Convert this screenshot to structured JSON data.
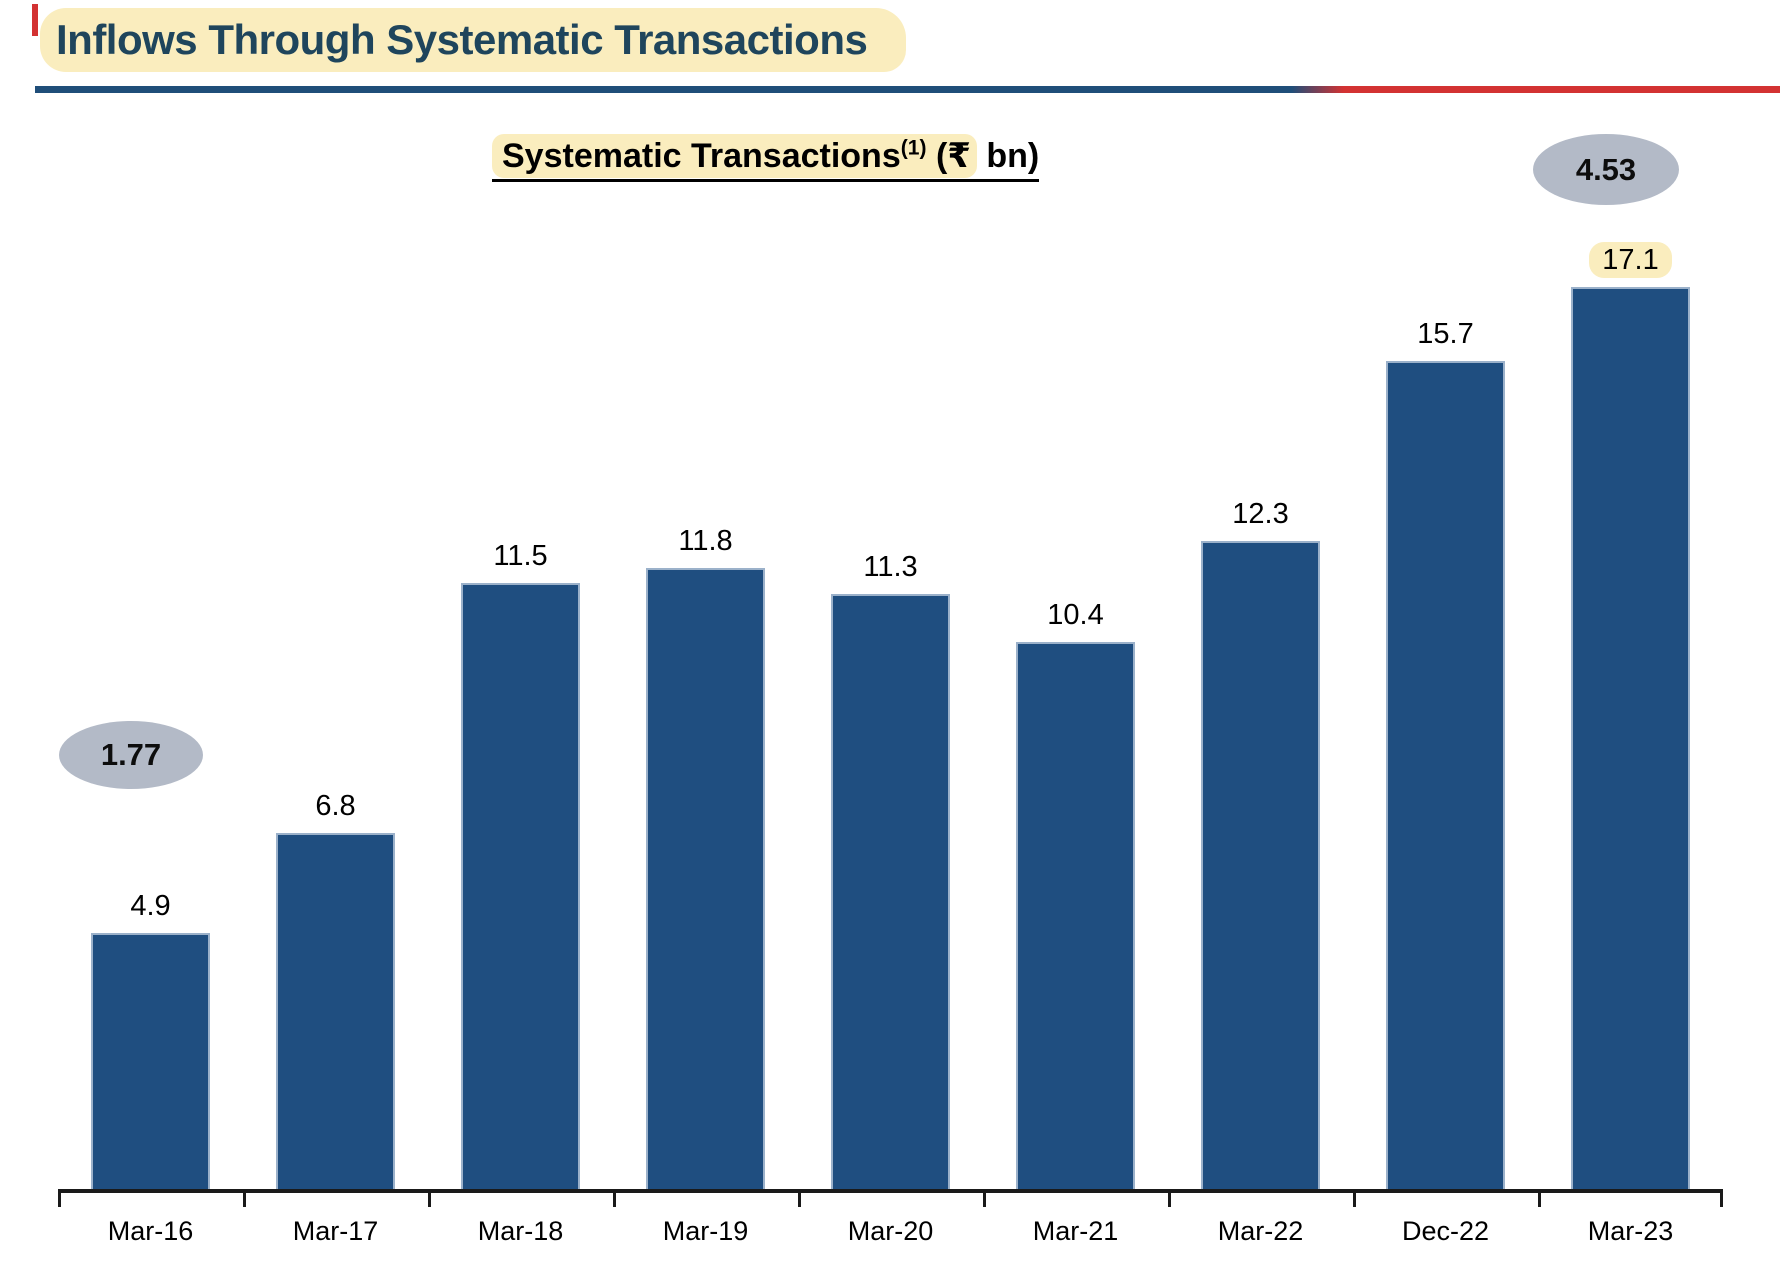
{
  "header": {
    "title": "Inflows Through Systematic Transactions"
  },
  "chart_title": {
    "main": "Systematic Transactions",
    "superscript": "(1)",
    "currency": "(₹",
    "unit": " bn)"
  },
  "callouts": {
    "initial": "1.77",
    "final": "4.53"
  },
  "colors": {
    "bar_fill": "#1F4E80",
    "bar_border": "#9BB1CA",
    "highlight_yellow": "#FAEDBE",
    "title_text": "#1F455C",
    "divider_blue": "#1F4E79",
    "divider_red": "#D33232",
    "callout_gray": "#B3BAC7",
    "axis_black": "#1A1A1A"
  },
  "chart_data": {
    "type": "bar",
    "title": "Systematic Transactions(1) (₹ bn)",
    "categories": [
      "Mar-16",
      "Mar-17",
      "Mar-18",
      "Mar-19",
      "Mar-20",
      "Mar-21",
      "Mar-22",
      "Dec-22",
      "Mar-23"
    ],
    "values": [
      4.9,
      6.8,
      11.5,
      11.8,
      11.3,
      10.4,
      12.3,
      15.7,
      17.1
    ],
    "value_labels": [
      "4.9",
      "6.8",
      "11.5",
      "11.8",
      "11.3",
      "10.4",
      "12.3",
      "15.7",
      "17.1"
    ],
    "highlighted_label_index": 8,
    "ylim": [
      0,
      18
    ],
    "grid": false,
    "legend": "none",
    "annotations": [
      {
        "text": "1.77",
        "position": "left-of-first-bar"
      },
      {
        "text": "4.53",
        "position": "above-last-bar"
      }
    ]
  }
}
